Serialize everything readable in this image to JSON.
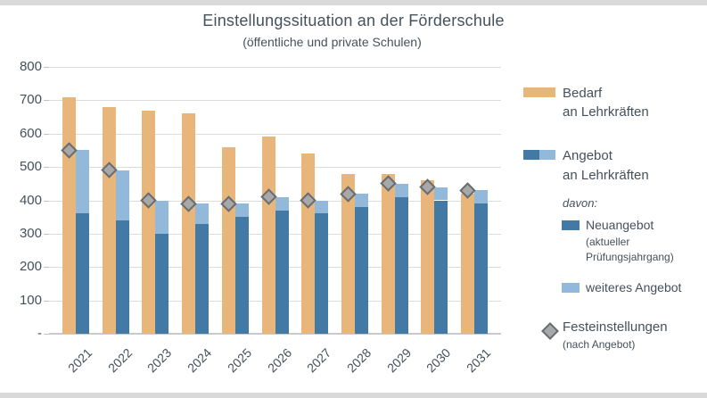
{
  "title": "Einstellungssituation an der Förderschule",
  "subtitle": "(öffentliche und private Schulen)",
  "colors": {
    "bedarf": "#e8b67b",
    "neuangebot": "#4379a5",
    "weiteres_angebot": "#92b9d9",
    "diamond_fill": "#a8a8a8",
    "diamond_border": "#696d70",
    "gridline": "#dcdcdc",
    "axis_line": "#c7cbce",
    "text": "#45505b",
    "frame_bar": "#d9d9d9"
  },
  "legend": {
    "bedarf_line1": "Bedarf",
    "bedarf_line2": "an Lehrkräften",
    "angebot_line1": "Angebot",
    "angebot_line2": "an Lehrkräften",
    "davon": "davon:",
    "neuangebot_label": "Neuangebot",
    "neuangebot_note1": "(aktueller",
    "neuangebot_note2": "Prüfungsjahrgang)",
    "weiteres_label": "weiteres Angebot",
    "fest_label": "Festeinstellungen",
    "fest_note": "(nach Angebot)"
  },
  "chart_data": {
    "type": "bar",
    "title": "Einstellungssituation an der Förderschule",
    "subtitle": "(öffentliche und private Schulen)",
    "categories": [
      "2021",
      "2022",
      "2023",
      "2024",
      "2025",
      "2026",
      "2027",
      "2028",
      "2029",
      "2030",
      "2031"
    ],
    "series": [
      {
        "name": "Bedarf an Lehrkräften",
        "type": "bar",
        "color": "#e8b67b",
        "values": [
          710,
          680,
          670,
          660,
          560,
          590,
          540,
          480,
          480,
          460,
          420
        ]
      },
      {
        "name": "Neuangebot (aktueller Prüfungsjahrgang)",
        "type": "bar",
        "stack": "angebot",
        "color": "#4379a5",
        "values": [
          360,
          340,
          300,
          330,
          350,
          370,
          360,
          380,
          410,
          400,
          390
        ]
      },
      {
        "name": "weiteres Angebot",
        "type": "bar",
        "stack": "angebot",
        "color": "#92b9d9",
        "values": [
          190,
          150,
          100,
          60,
          40,
          40,
          40,
          40,
          40,
          40,
          40
        ]
      },
      {
        "name": "Festeinstellungen (nach Angebot)",
        "type": "scatter",
        "marker": "diamond",
        "color": "#a8a8a8",
        "values": [
          550,
          490,
          400,
          390,
          390,
          410,
          400,
          420,
          450,
          440,
          430
        ]
      }
    ],
    "ylim": [
      0,
      800
    ],
    "ytick_interval": 100,
    "yticks": [
      {
        "value": 800,
        "label": "800"
      },
      {
        "value": 700,
        "label": "700"
      },
      {
        "value": 600,
        "label": "600"
      },
      {
        "value": 500,
        "label": "500"
      },
      {
        "value": 400,
        "label": "400"
      },
      {
        "value": 300,
        "label": "300"
      },
      {
        "value": 200,
        "label": "200"
      },
      {
        "value": 100,
        "label": "100"
      },
      {
        "value": 0,
        "label": "-"
      }
    ],
    "grid": true,
    "legend_position": "right"
  }
}
